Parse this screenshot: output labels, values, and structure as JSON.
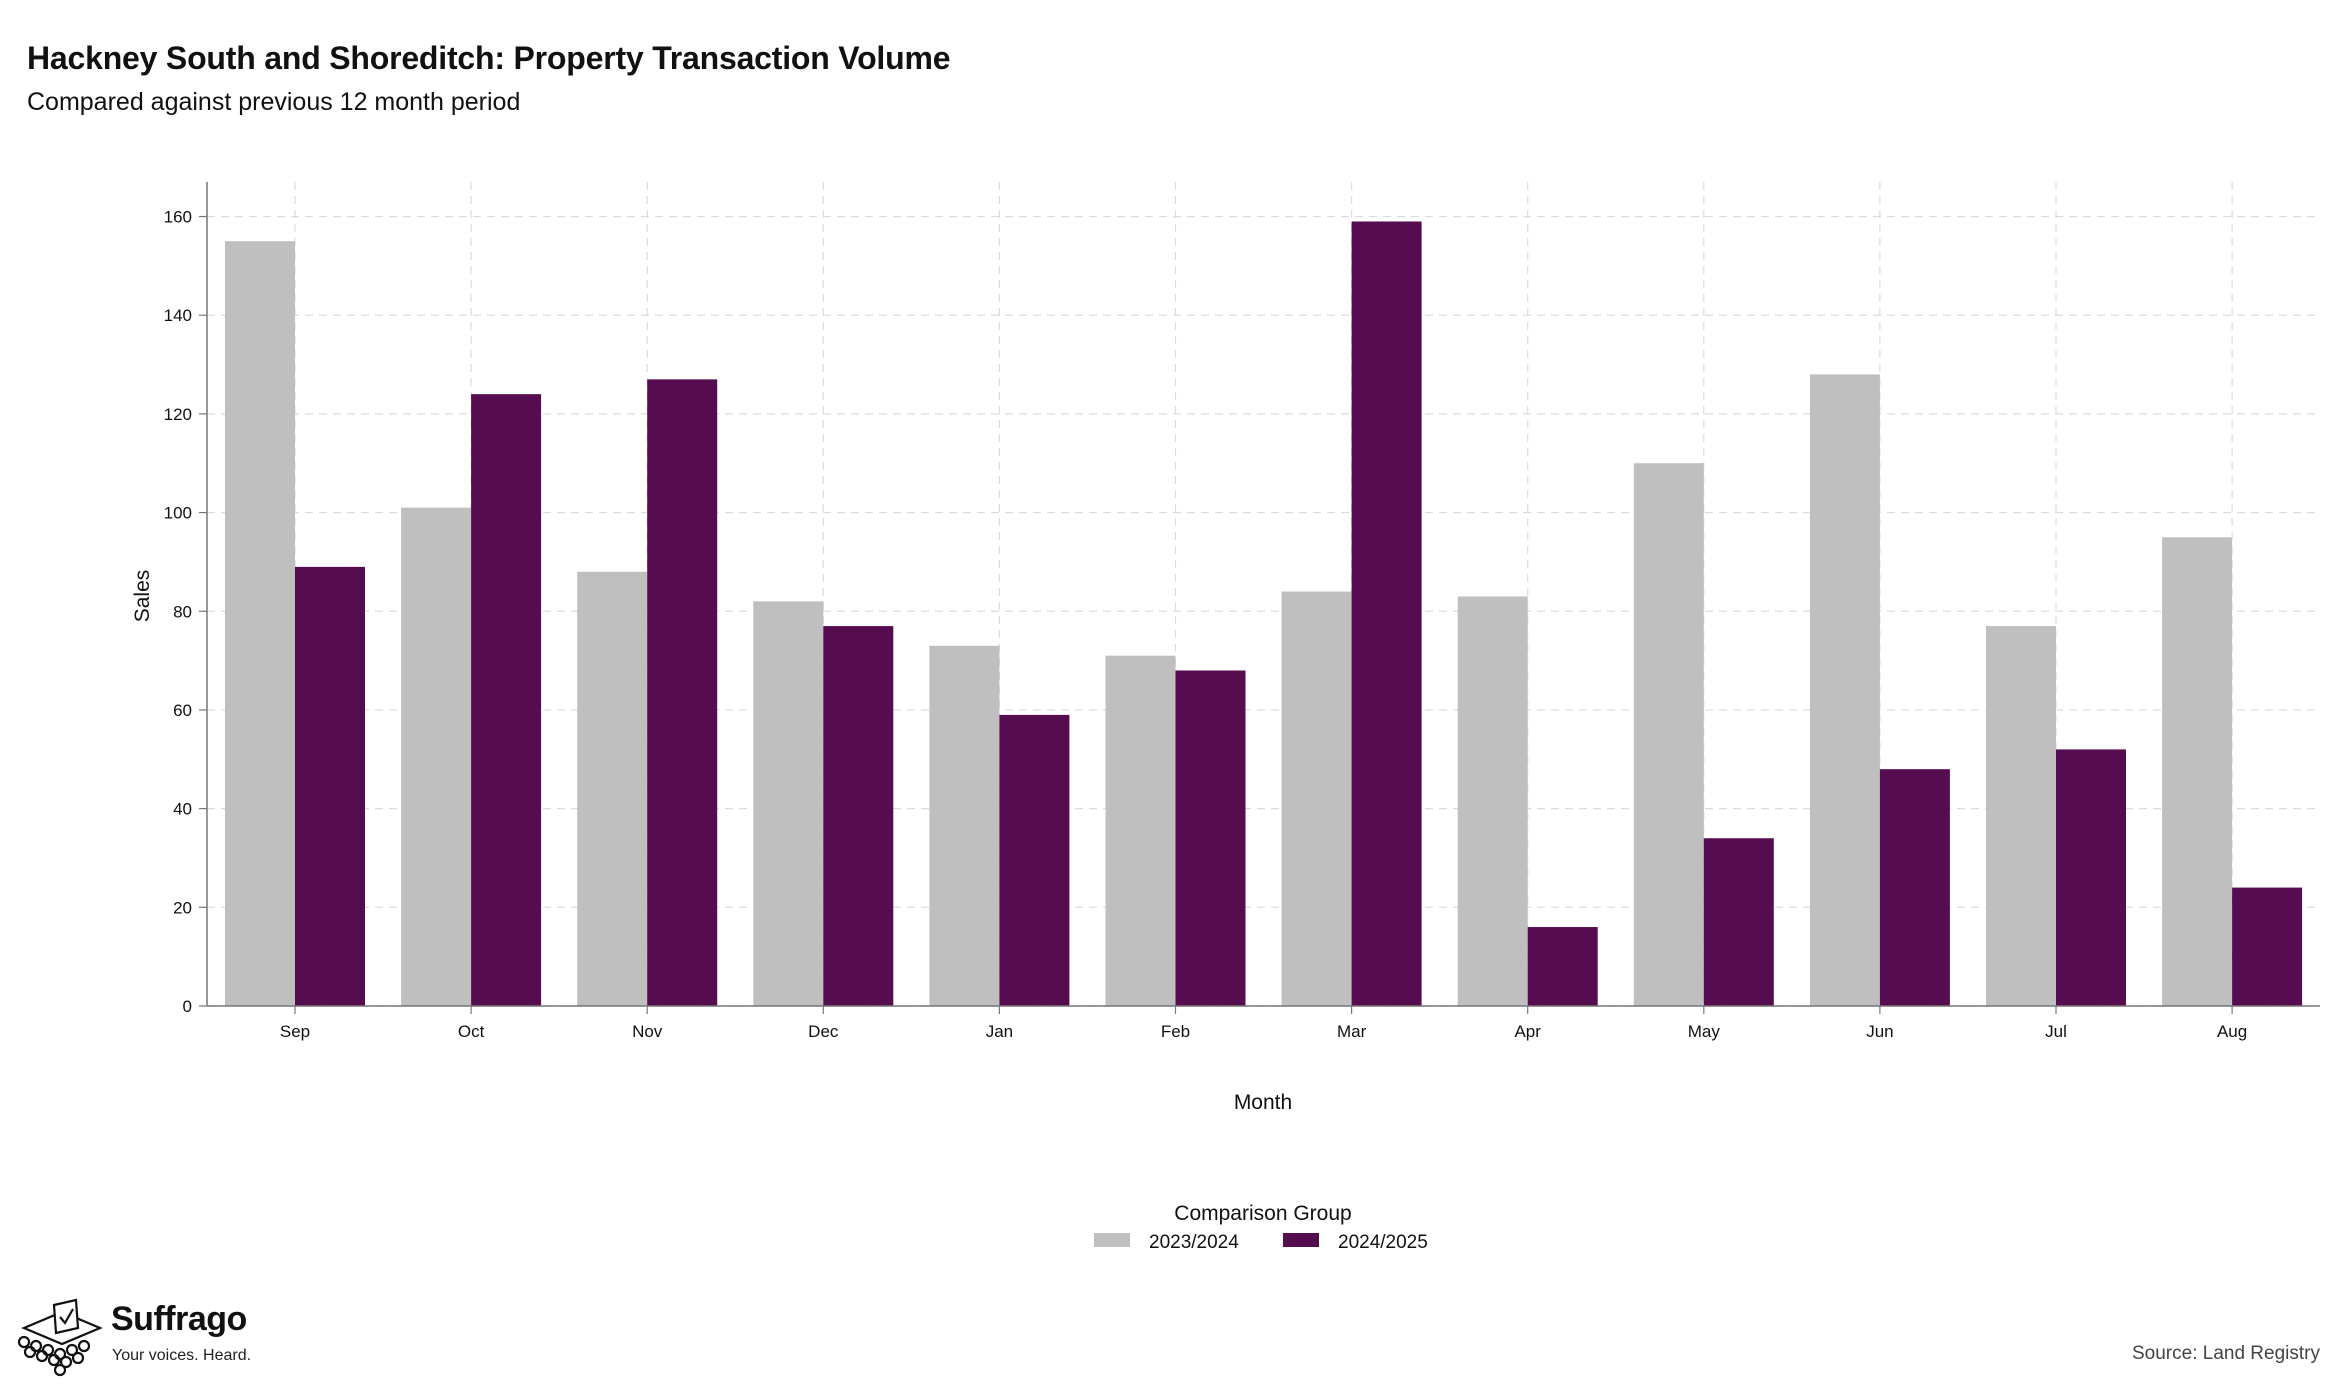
{
  "header": {
    "title": "Hackney South and Shoreditch: Property Transaction Volume",
    "subtitle": "Compared against previous 12 month period"
  },
  "footer": {
    "brand_name": "Suffrago",
    "brand_tagline": "Your voices. Heard.",
    "source": "Source: Land Registry"
  },
  "chart_data": {
    "type": "bar",
    "categories": [
      "Sep",
      "Oct",
      "Nov",
      "Dec",
      "Jan",
      "Feb",
      "Mar",
      "Apr",
      "May",
      "Jun",
      "Jul",
      "Aug"
    ],
    "series": [
      {
        "name": "2023/2024",
        "color": "#bfbfbf",
        "values": [
          155,
          101,
          88,
          82,
          73,
          71,
          84,
          83,
          110,
          128,
          77,
          95
        ]
      },
      {
        "name": "2024/2025",
        "color": "#560d50",
        "values": [
          89,
          124,
          127,
          77,
          59,
          68,
          159,
          16,
          34,
          48,
          52,
          24
        ]
      }
    ],
    "xlabel": "Month",
    "ylabel": "Sales",
    "ylim": [
      0,
      167
    ],
    "yticks": [
      0,
      20,
      40,
      60,
      80,
      100,
      120,
      140,
      160
    ],
    "grid": true,
    "legend": {
      "title": "Comparison Group",
      "placement": "bottom-center"
    }
  }
}
